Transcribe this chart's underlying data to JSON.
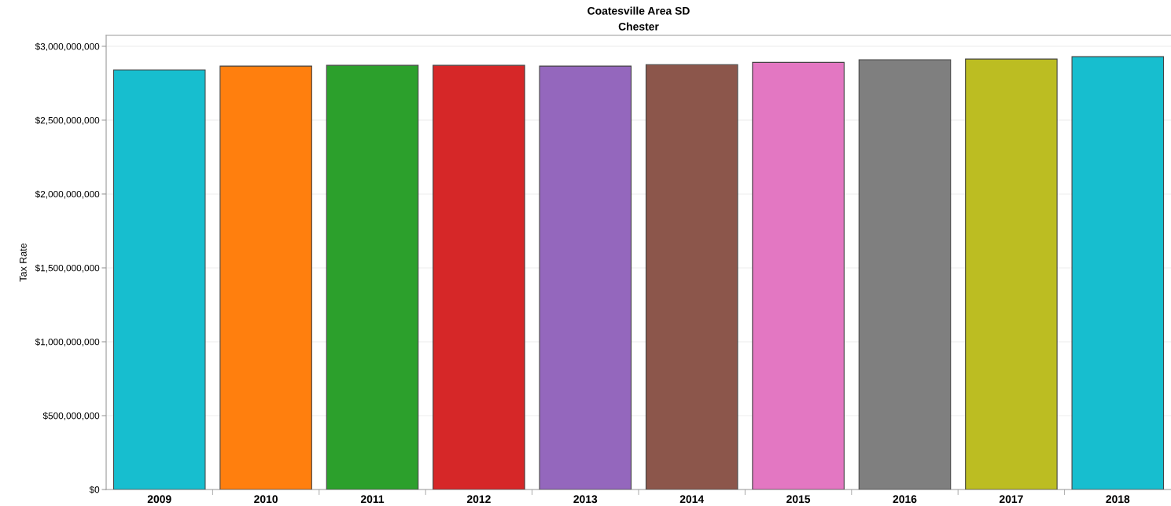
{
  "chart_data": {
    "type": "bar",
    "title": "Coatesville Area SD",
    "subtitle": "Chester",
    "ylabel": "Tax Rate",
    "categories": [
      "2009",
      "2010",
      "2011",
      "2012",
      "2013",
      "2014",
      "2015",
      "2016",
      "2017",
      "2018"
    ],
    "values": [
      2840000000,
      2866000000,
      2871000000,
      2871000000,
      2866000000,
      2876000000,
      2891000000,
      2909000000,
      2914000000,
      2930000000
    ],
    "colors": [
      "#17becf",
      "#ff7f0e",
      "#2ca02c",
      "#d62728",
      "#9467bd",
      "#8c564b",
      "#e377c2",
      "#7f7f7f",
      "#bcbd22",
      "#17becf"
    ],
    "ylim": [
      0,
      3074000000
    ],
    "yticks": [
      {
        "value": 0,
        "label": "$0"
      },
      {
        "value": 500000000,
        "label": "$500,000,000"
      },
      {
        "value": 1000000000,
        "label": "$1,000,000,000"
      },
      {
        "value": 1500000000,
        "label": "$1,500,000,000"
      },
      {
        "value": 2000000000,
        "label": "$2,000,000,000"
      },
      {
        "value": 2500000000,
        "label": "$2,500,000,000"
      },
      {
        "value": 3000000000,
        "label": "$3,000,000,000"
      }
    ],
    "grid": "y",
    "legend": false
  }
}
